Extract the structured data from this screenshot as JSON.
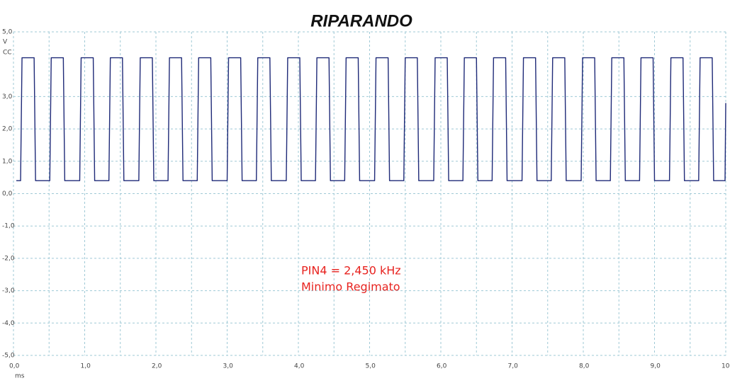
{
  "chart_data": {
    "type": "line",
    "brand": "RIPARANDO",
    "annotations": [
      "PIN4 = 2,450 kHz",
      "Minimo Regimato"
    ],
    "ylabel": "V",
    "ylabel_sub": "CC",
    "xlabel": "ms",
    "color": "#1f2a78",
    "grid": true,
    "xlim": [
      0,
      10
    ],
    "ylim": [
      -5,
      5
    ],
    "xticks": [
      {
        "value": 0,
        "label": "0,0"
      },
      {
        "value": 1,
        "label": "1,0"
      },
      {
        "value": 2,
        "label": "2,0"
      },
      {
        "value": 3,
        "label": "3,0"
      },
      {
        "value": 4,
        "label": "4,0"
      },
      {
        "value": 5,
        "label": "5,0"
      },
      {
        "value": 6,
        "label": "6,0"
      },
      {
        "value": 7,
        "label": "7,0"
      },
      {
        "value": 8,
        "label": "8,0"
      },
      {
        "value": 9,
        "label": "9,0"
      },
      {
        "value": 10,
        "label": "10,0"
      }
    ],
    "xminor": [
      0.5,
      1.5,
      2.5,
      3.5,
      4.5,
      5.5,
      6.5,
      7.5,
      8.5,
      9.5
    ],
    "yticks": [
      {
        "value": 5,
        "label": "5,0"
      },
      {
        "value": 3,
        "label": "3,0"
      },
      {
        "value": 2,
        "label": "2,0"
      },
      {
        "value": 1,
        "label": "1,0"
      },
      {
        "value": 0,
        "label": "0,0"
      },
      {
        "value": -1,
        "label": "-1,0"
      },
      {
        "value": -2,
        "label": "-2,0"
      },
      {
        "value": -3,
        "label": "-3,0"
      },
      {
        "value": -4,
        "label": "-4,0"
      },
      {
        "value": -5,
        "label": "-5,0"
      }
    ],
    "x": [
      0.04,
      0.1,
      0.12,
      0.29,
      0.31,
      0.51,
      0.53,
      0.7,
      0.72,
      0.93,
      0.95,
      1.12,
      1.14,
      1.34,
      1.36,
      1.53,
      1.55,
      1.76,
      1.78,
      1.95,
      1.97,
      2.17,
      2.19,
      2.36,
      2.38,
      2.58,
      2.6,
      2.77,
      2.79,
      3.0,
      3.02,
      3.19,
      3.21,
      3.41,
      3.43,
      3.6,
      3.62,
      3.83,
      3.85,
      4.02,
      4.04,
      4.24,
      4.26,
      4.43,
      4.45,
      4.65,
      4.67,
      4.84,
      4.86,
      5.07,
      5.09,
      5.26,
      5.28,
      5.48,
      5.5,
      5.67,
      5.69,
      5.9,
      5.92,
      6.09,
      6.11,
      6.31,
      6.33,
      6.5,
      6.52,
      6.72,
      6.74,
      6.91,
      6.93,
      7.14,
      7.16,
      7.33,
      7.35,
      7.55,
      7.57,
      7.74,
      7.76,
      7.97,
      7.99,
      8.16,
      8.18,
      8.38,
      8.4,
      8.57,
      8.59,
      8.79,
      8.81,
      8.98,
      9.0,
      9.21,
      9.23,
      9.4,
      9.42,
      9.62,
      9.64,
      9.81,
      9.83,
      9.99,
      10.0
    ],
    "values": [
      0.4,
      0.4,
      4.2,
      4.2,
      0.4,
      0.4,
      4.2,
      4.2,
      0.4,
      0.4,
      4.2,
      4.2,
      0.4,
      0.4,
      4.2,
      4.2,
      0.4,
      0.4,
      4.2,
      4.2,
      0.4,
      0.4,
      4.2,
      4.2,
      0.4,
      0.4,
      4.2,
      4.2,
      0.4,
      0.4,
      4.2,
      4.2,
      0.4,
      0.4,
      4.2,
      4.2,
      0.4,
      0.4,
      4.2,
      4.2,
      0.4,
      0.4,
      4.2,
      4.2,
      0.4,
      0.4,
      4.2,
      4.2,
      0.4,
      0.4,
      4.2,
      4.2,
      0.4,
      0.4,
      4.2,
      4.2,
      0.4,
      0.4,
      4.2,
      4.2,
      0.4,
      0.4,
      4.2,
      4.2,
      0.4,
      0.4,
      4.2,
      4.2,
      0.4,
      0.4,
      4.2,
      4.2,
      0.4,
      0.4,
      4.2,
      4.2,
      0.4,
      0.4,
      4.2,
      4.2,
      0.4,
      0.4,
      4.2,
      4.2,
      0.4,
      0.4,
      4.2,
      4.2,
      0.4,
      0.4,
      4.2,
      4.2,
      0.4,
      0.4,
      4.2,
      4.2,
      0.4,
      0.4,
      2.8
    ]
  }
}
